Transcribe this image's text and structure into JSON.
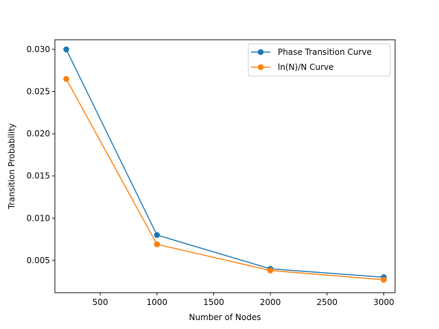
{
  "chart_data": {
    "type": "line",
    "title": "",
    "xlabel": "Number of Nodes",
    "ylabel": "Transition Probability",
    "xlim": [
      100,
      3100
    ],
    "ylim": [
      0.00117,
      0.03114
    ],
    "xticks": [
      500,
      1000,
      1500,
      2000,
      2500,
      3000
    ],
    "xtick_labels": [
      "500",
      "1000",
      "1500",
      "2000",
      "2500",
      "3000"
    ],
    "yticks": [
      0.005,
      0.01,
      0.015,
      0.02,
      0.025,
      0.03
    ],
    "ytick_labels": [
      "0.005",
      "0.010",
      "0.015",
      "0.020",
      "0.025",
      "0.030"
    ],
    "grid": false,
    "legend_position": "top-right",
    "series": [
      {
        "name": "Phase Transition Curve",
        "color": "#1f77b4",
        "marker": "circle",
        "x": [
          200,
          1000,
          2000,
          3000
        ],
        "y": [
          0.03,
          0.008,
          0.004,
          0.003
        ]
      },
      {
        "name": "ln(N)/N Curve",
        "color": "#ff7f0e",
        "marker": "circle",
        "x": [
          200,
          1000,
          2000,
          3000
        ],
        "y": [
          0.0265,
          0.0069,
          0.0038,
          0.0027
        ]
      }
    ]
  }
}
